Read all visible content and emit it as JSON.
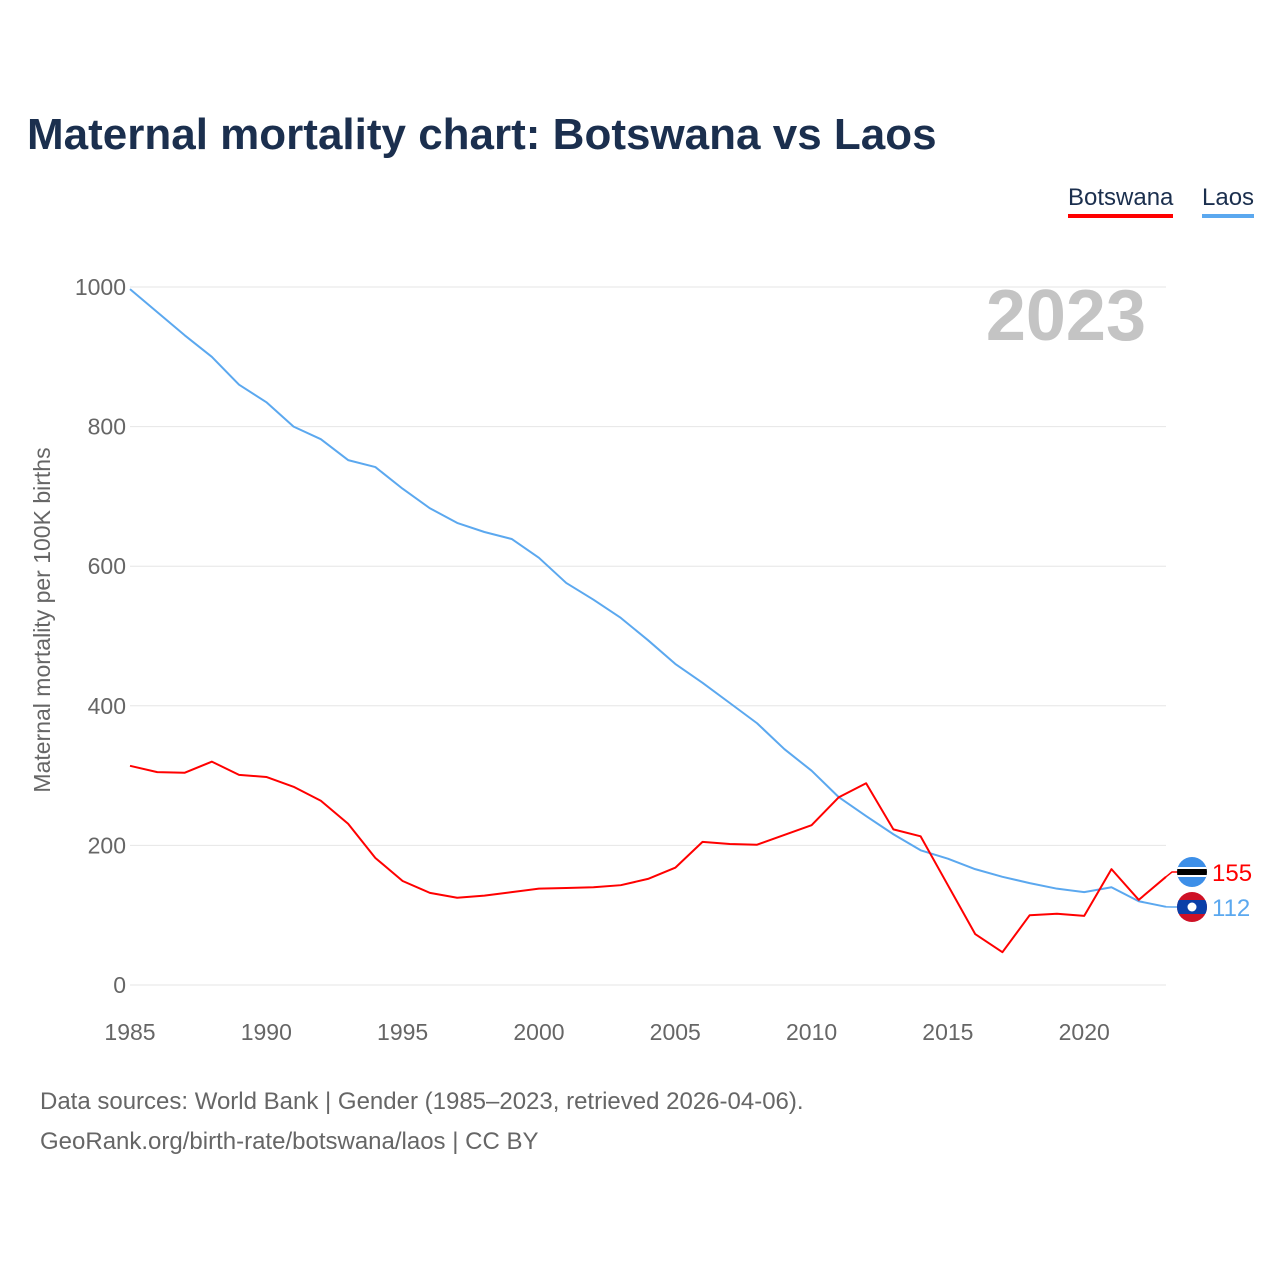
{
  "title": "Maternal mortality chart: Botswana vs Laos",
  "footer": {
    "line1": "Data sources: World Bank | Gender (1985–2023, retrieved 2026-04-06).",
    "line2": "GeoRank.org/birth-rate/botswana/laos | CC BY"
  },
  "chart_data": {
    "type": "line",
    "title": "Maternal mortality chart: Botswana vs Laos",
    "ylabel": "Maternal mortality per 100K births",
    "xlabel": "",
    "year_label": "2023",
    "xlim": [
      1985,
      2023
    ],
    "ylim": [
      0,
      1000
    ],
    "xticks": [
      1985,
      1990,
      1995,
      2000,
      2005,
      2010,
      2015,
      2020
    ],
    "yticks": [
      0,
      200,
      400,
      600,
      800,
      1000
    ],
    "grid": true,
    "legend_position": "top-right",
    "x": [
      1985,
      1986,
      1987,
      1988,
      1989,
      1990,
      1991,
      1992,
      1993,
      1994,
      1995,
      1996,
      1997,
      1998,
      1999,
      2000,
      2001,
      2002,
      2003,
      2004,
      2005,
      2006,
      2007,
      2008,
      2009,
      2010,
      2011,
      2012,
      2013,
      2014,
      2015,
      2016,
      2017,
      2018,
      2019,
      2020,
      2021,
      2022,
      2023
    ],
    "series": [
      {
        "name": "Botswana",
        "color": "#ff0000",
        "end_label": "155",
        "values": [
          314,
          305,
          304,
          320,
          301,
          298,
          284,
          264,
          231,
          182,
          149,
          132,
          125,
          128,
          133,
          138,
          139,
          140,
          143,
          152,
          168,
          205,
          202,
          201,
          215,
          229,
          269,
          289,
          223,
          213,
          143,
          73,
          47,
          100,
          102,
          99,
          166,
          122,
          155
        ]
      },
      {
        "name": "Laos",
        "color": "#5ba8ef",
        "end_label": "112",
        "values": [
          997,
          964,
          931,
          900,
          860,
          835,
          800,
          782,
          752,
          742,
          711,
          683,
          662,
          649,
          639,
          612,
          576,
          552,
          526,
          494,
          460,
          433,
          404,
          375,
          338,
          307,
          269,
          242,
          216,
          193,
          181,
          166,
          155,
          146,
          138,
          133,
          140,
          120,
          112
        ]
      }
    ]
  }
}
